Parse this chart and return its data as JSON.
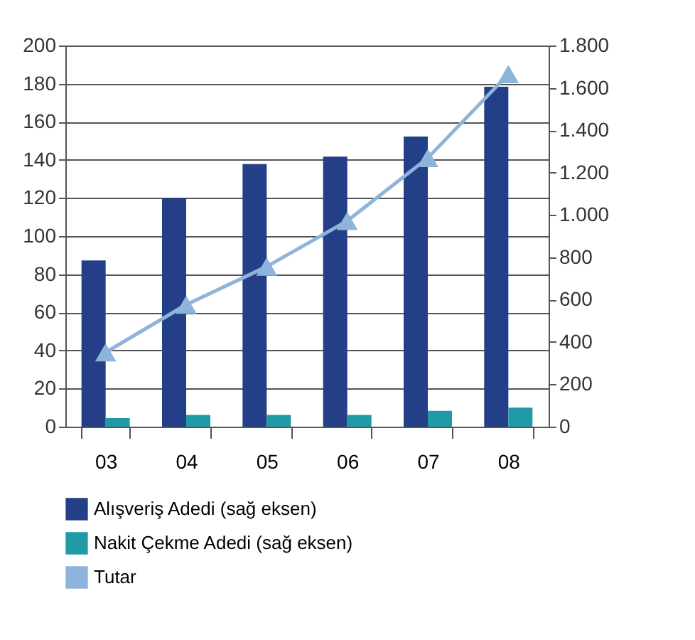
{
  "chart_data": {
    "type": "bar",
    "categories": [
      "03",
      "04",
      "05",
      "06",
      "07",
      "08"
    ],
    "series": [
      {
        "name": "Alışveriş Adedi (sağ eksen)",
        "axis": "y2",
        "color": "#233f87",
        "values": [
          785,
          1080,
          1240,
          1275,
          1370,
          1605
        ]
      },
      {
        "name": "Nakit Çekme Adedi (sağ eksen)",
        "axis": "y2",
        "color": "#219aa8",
        "values": [
          40,
          55,
          55,
          55,
          75,
          90
        ]
      },
      {
        "name": "Tutar",
        "type": "line",
        "color": "#8fb4dc",
        "marker": "triangle",
        "values": [
          39,
          64,
          84,
          108,
          141,
          185
        ]
      }
    ],
    "ylim": [
      0,
      200
    ],
    "yticks": [
      0,
      20,
      40,
      60,
      80,
      100,
      120,
      140,
      160,
      180,
      200
    ],
    "y2lim": [
      0,
      1800
    ],
    "y2ticks": [
      0,
      200,
      400,
      600,
      800,
      {
        "value": 1000,
        "label": "1.000"
      },
      {
        "value": 1200,
        "label": "1.200"
      },
      {
        "value": 1400,
        "label": "1.400"
      },
      {
        "value": 1600,
        "label": "1.600"
      },
      {
        "value": 1800,
        "label": "1.800"
      }
    ],
    "grid": "y",
    "legend": "bottom"
  }
}
